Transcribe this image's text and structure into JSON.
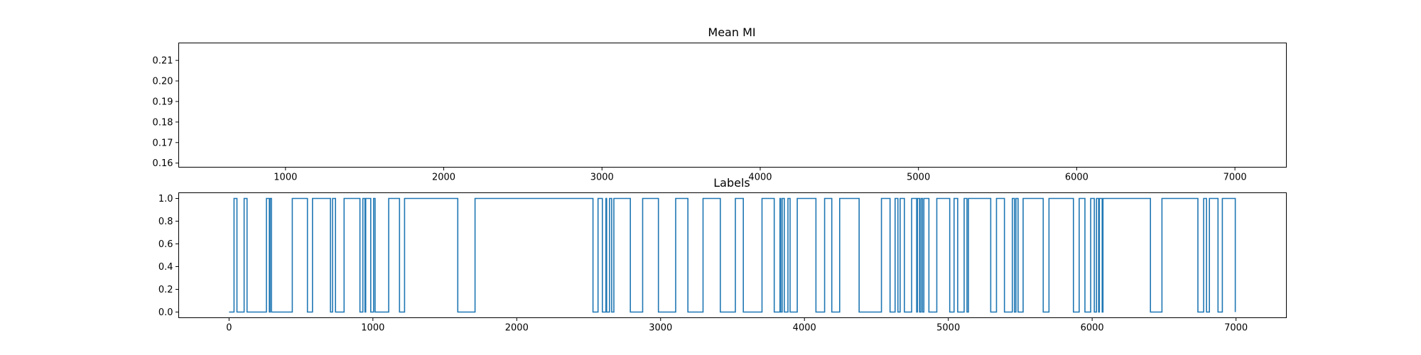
{
  "chart_data": [
    {
      "type": "line",
      "title": "Mean MI",
      "xlim": [
        325,
        7325
      ],
      "ylim": [
        0.158,
        0.2185
      ],
      "x_ticks": [
        1000,
        2000,
        3000,
        4000,
        5000,
        6000,
        7000
      ],
      "y_ticks": [
        0.16,
        0.17,
        0.18,
        0.19,
        0.2,
        0.21
      ],
      "x_tick_labels": [
        "1000",
        "2000",
        "3000",
        "4000",
        "5000",
        "6000",
        "7000"
      ],
      "y_tick_labels": [
        "0.16",
        "0.17",
        "0.18",
        "0.19",
        "0.20",
        "0.21"
      ],
      "series": [],
      "color": "#1f77b4",
      "grid": false,
      "legend": "none"
    },
    {
      "type": "line",
      "title": "Labels",
      "xlim": [
        -350,
        7350
      ],
      "ylim": [
        -0.05,
        1.05
      ],
      "x_ticks": [
        0,
        1000,
        2000,
        3000,
        4000,
        5000,
        6000,
        7000
      ],
      "y_ticks": [
        0.0,
        0.2,
        0.4,
        0.6,
        0.8,
        1.0
      ],
      "x_tick_labels": [
        "0",
        "1000",
        "2000",
        "3000",
        "4000",
        "5000",
        "6000",
        "7000"
      ],
      "y_tick_labels": [
        "0.0",
        "0.2",
        "0.4",
        "0.6",
        "0.8",
        "1.0"
      ],
      "color": "#1f77b4",
      "grid": false,
      "legend": "none",
      "drawstyle": "steps",
      "x_start": 0,
      "x_end": 6995,
      "initial_value": 0,
      "transitions": [
        35,
        55,
        105,
        125,
        260,
        280,
        285,
        295,
        440,
        545,
        580,
        705,
        720,
        740,
        800,
        910,
        930,
        945,
        950,
        985,
        1005,
        1015,
        1110,
        1185,
        1220,
        1590,
        1710,
        2530,
        2565,
        2595,
        2620,
        2625,
        2645,
        2660,
        2675,
        2790,
        2875,
        2985,
        3105,
        3190,
        3295,
        3415,
        3520,
        3575,
        3705,
        3790,
        3830,
        3835,
        3845,
        3860,
        3885,
        3900,
        3950,
        4080,
        4140,
        4190,
        4245,
        4380,
        4535,
        4595,
        4630,
        4650,
        4665,
        4695,
        4745,
        4780,
        4785,
        4800,
        4810,
        4820,
        4830,
        4865,
        4920,
        5010,
        5040,
        5065,
        5110,
        5130,
        5140,
        5295,
        5335,
        5390,
        5445,
        5460,
        5470,
        5485,
        5520,
        5660,
        5700,
        5870,
        5910,
        5950,
        5990,
        6015,
        6030,
        6045,
        6050,
        6070,
        6075,
        6405,
        6485,
        6735,
        6775,
        6795,
        6815,
        6875,
        6905,
        6995
      ]
    }
  ]
}
